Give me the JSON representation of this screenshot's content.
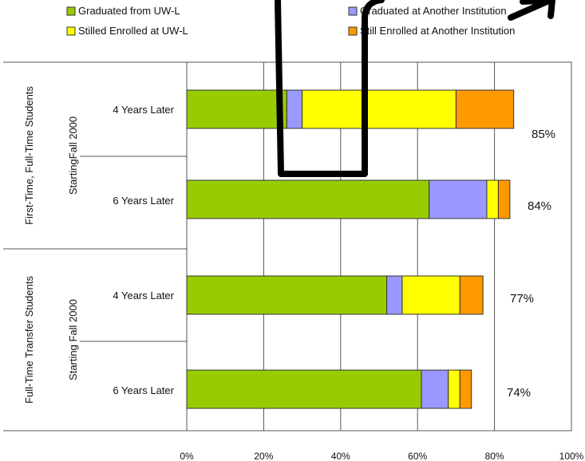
{
  "chart_data": {
    "type": "bar",
    "orientation": "horizontal",
    "stacked": true,
    "legend": {
      "placement": "top",
      "items": [
        {
          "label": "Graduated from UW-L",
          "color": "#99cc00"
        },
        {
          "label": "Graduated at Another Institution",
          "color": "#9999ff"
        },
        {
          "label": "Stilled Enrolled at UW-L",
          "color": "#ffff00"
        },
        {
          "label": "Still Enrolled at Another Institution",
          "color": "#ff9900"
        }
      ]
    },
    "groups": [
      {
        "label": "First-Time, Full-Time Students",
        "sublabel": "StartingFall 2000"
      },
      {
        "label": "Full-Time Transfer Students",
        "sublabel": "Starting Fall 2000"
      }
    ],
    "categories": [
      "4 Years Later",
      "6 Years Later",
      "4 Years Later",
      "6 Years Later"
    ],
    "series": [
      {
        "name": "Graduated from UW-L",
        "color": "#99cc00",
        "values": [
          26,
          63,
          52,
          61
        ]
      },
      {
        "name": "Graduated at Another Institution",
        "color": "#9999ff",
        "values": [
          4,
          15,
          4,
          7
        ]
      },
      {
        "name": "Stilled Enrolled at UW-L",
        "color": "#ffff00",
        "values": [
          40,
          3,
          15,
          3
        ]
      },
      {
        "name": "Still Enrolled at Another Institution",
        "color": "#ff9900",
        "values": [
          15,
          3,
          6,
          3
        ]
      }
    ],
    "totals": [
      "85%",
      "84%",
      "77%",
      "74%"
    ],
    "x_ticks": [
      "0%",
      "20%",
      "40%",
      "60%",
      "80%",
      "100%"
    ],
    "xlim": [
      0,
      100
    ],
    "grid": true,
    "annotation_color": "#000000"
  }
}
